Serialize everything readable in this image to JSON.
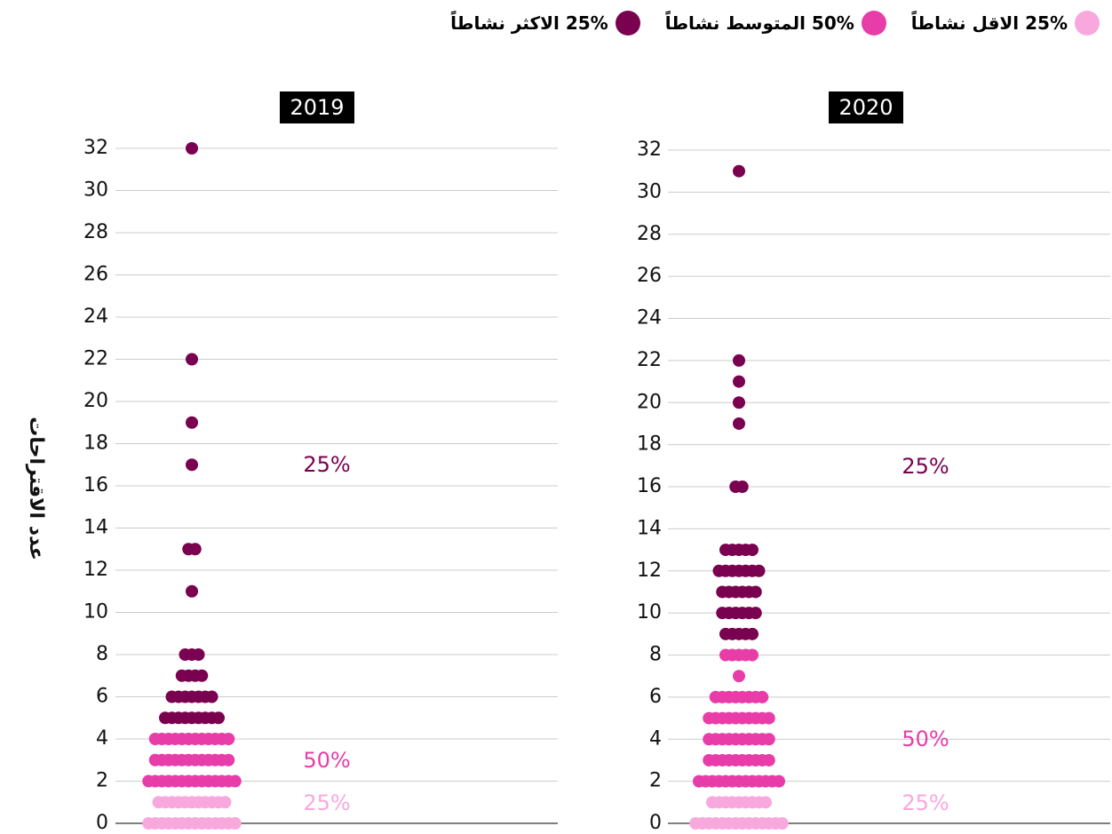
{
  "y_label": "عدد الاقتراحات",
  "chart_data": [
    {
      "type": "beeswarm",
      "title": "2019",
      "ylim": [
        0,
        32
      ],
      "yticks": [
        0,
        2,
        4,
        6,
        8,
        10,
        12,
        14,
        16,
        18,
        20,
        22,
        24,
        26,
        28,
        30,
        32
      ],
      "grid": true,
      "annotations": [
        {
          "text": "25%",
          "color": "#7a0050"
        },
        {
          "text": "50%",
          "color": "#e83ca8"
        },
        {
          "text": "25%",
          "color": "#f9a8de"
        }
      ],
      "series": [
        {
          "name": "25% الاقل نشاطاً",
          "color": "#f9a8de",
          "values": [
            0,
            0,
            0,
            0,
            0,
            0,
            0,
            0,
            0,
            0,
            0,
            0,
            0,
            0,
            1,
            1,
            1,
            1,
            1,
            1,
            1,
            1,
            1,
            1,
            1
          ]
        },
        {
          "name": "50% المتوسط نشاطاً",
          "color": "#e83ca8",
          "values": [
            2,
            2,
            2,
            2,
            2,
            2,
            2,
            2,
            2,
            2,
            2,
            2,
            2,
            2,
            3,
            3,
            3,
            3,
            3,
            3,
            3,
            3,
            3,
            3,
            3,
            3,
            4,
            4,
            4,
            4,
            4,
            4,
            4,
            4,
            4,
            4,
            4,
            4
          ]
        },
        {
          "name": "25% الاكثر نشاطاً",
          "color": "#7a0050",
          "values": [
            5,
            5,
            5,
            5,
            5,
            5,
            5,
            5,
            5,
            6,
            6,
            6,
            6,
            6,
            6,
            6,
            7,
            7,
            7,
            7,
            8,
            8,
            8,
            11,
            13,
            13,
            17,
            19,
            22,
            32
          ]
        }
      ]
    },
    {
      "type": "beeswarm",
      "title": "2020",
      "ylim": [
        0,
        32
      ],
      "yticks": [
        0,
        2,
        4,
        6,
        8,
        10,
        12,
        14,
        16,
        18,
        20,
        22,
        24,
        26,
        28,
        30,
        32
      ],
      "grid": true,
      "annotations": [
        {
          "text": "25%",
          "color": "#7a0050"
        },
        {
          "text": "50%",
          "color": "#e83ca8"
        },
        {
          "text": "25%",
          "color": "#f9a8de"
        }
      ],
      "series": [
        {
          "color": "#f9a8de",
          "values": [
            0,
            0,
            0,
            0,
            0,
            0,
            0,
            0,
            0,
            0,
            0,
            0,
            0,
            0,
            1,
            1,
            1,
            1,
            1,
            1,
            1,
            1,
            1
          ]
        },
        {
          "color": "#e83ca8",
          "values": [
            2,
            2,
            2,
            2,
            2,
            2,
            2,
            2,
            2,
            2,
            2,
            2,
            2,
            3,
            3,
            3,
            3,
            3,
            3,
            3,
            3,
            3,
            3,
            4,
            4,
            4,
            4,
            4,
            4,
            4,
            4,
            4,
            4,
            5,
            5,
            5,
            5,
            5,
            5,
            5,
            5,
            5,
            5,
            6,
            6,
            6,
            6,
            6,
            6,
            6,
            6,
            7,
            8,
            8,
            8,
            8,
            8
          ]
        },
        {
          "color": "#7a0050",
          "values": [
            9,
            9,
            9,
            9,
            9,
            10,
            10,
            10,
            10,
            10,
            10,
            11,
            11,
            11,
            11,
            11,
            11,
            12,
            12,
            12,
            12,
            12,
            12,
            12,
            13,
            13,
            13,
            13,
            13,
            16,
            16,
            19,
            20,
            21,
            22,
            31
          ]
        }
      ]
    }
  ]
}
